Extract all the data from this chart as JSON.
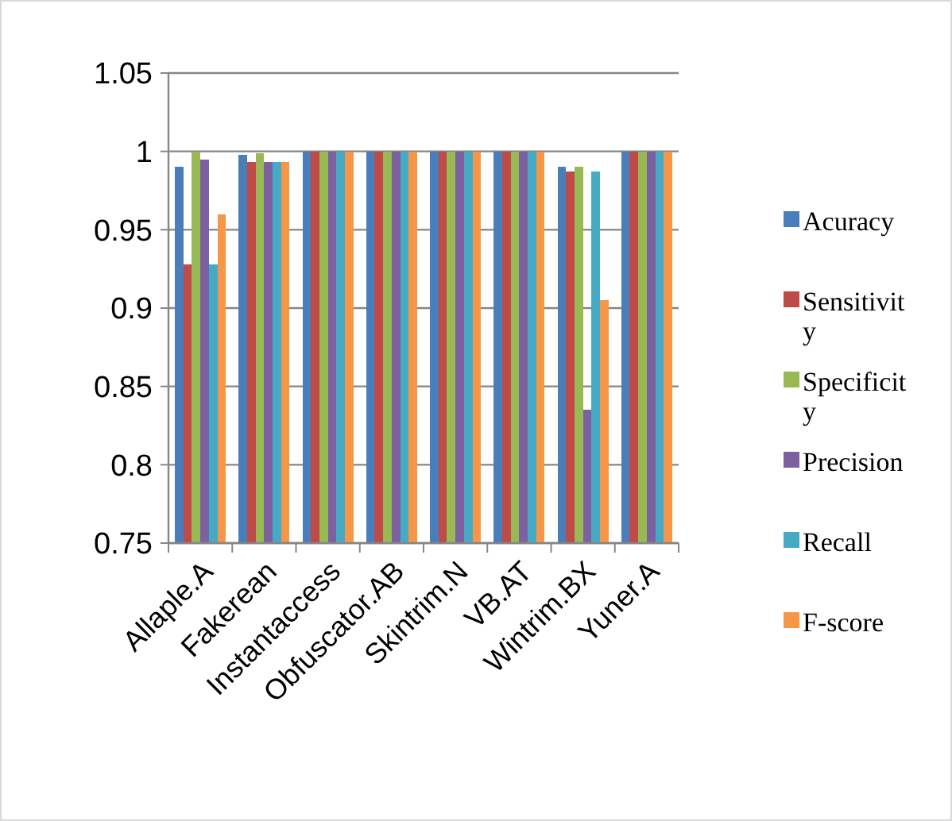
{
  "chart_data": {
    "type": "bar",
    "categories": [
      "Allaple.A",
      "Fakerean",
      "Instantaccess",
      "Obfuscator.AB",
      "Skintrim.N",
      "VB.AT",
      "Wintrim.BX",
      "Yuner.A"
    ],
    "series": [
      {
        "name": "Acuracy",
        "color": "#4a7ebb",
        "values": [
          0.99,
          0.998,
          1,
          1,
          1,
          1,
          0.99,
          1
        ]
      },
      {
        "name": "Sensitivity",
        "color": "#be4b48",
        "values": [
          0.928,
          0.993,
          1,
          1,
          1,
          1,
          0.987,
          1
        ]
      },
      {
        "name": "Specificity",
        "color": "#98b954",
        "values": [
          1,
          0.999,
          1,
          1,
          1,
          1,
          0.99,
          1
        ]
      },
      {
        "name": "Precision",
        "color": "#7d60a0",
        "values": [
          0.995,
          0.993,
          1,
          1,
          1,
          1,
          0.835,
          1
        ]
      },
      {
        "name": "Recall",
        "color": "#46aac5",
        "values": [
          0.928,
          0.993,
          1,
          1,
          1,
          1,
          0.987,
          1
        ]
      },
      {
        "name": "F-score",
        "color": "#f79646",
        "values": [
          0.96,
          0.993,
          1,
          1,
          1,
          1,
          0.905,
          1
        ]
      }
    ],
    "ylim": [
      0.75,
      1.05
    ],
    "yticks": [
      {
        "value": 0.75,
        "label": "0.75"
      },
      {
        "value": 0.8,
        "label": "0.8"
      },
      {
        "value": 0.85,
        "label": "0.85"
      },
      {
        "value": 0.9,
        "label": "0.9"
      },
      {
        "value": 0.95,
        "label": "0.95"
      },
      {
        "value": 1,
        "label": "1"
      },
      {
        "value": 1.05,
        "label": "1.05"
      }
    ],
    "grid": "y",
    "legend": "right"
  }
}
